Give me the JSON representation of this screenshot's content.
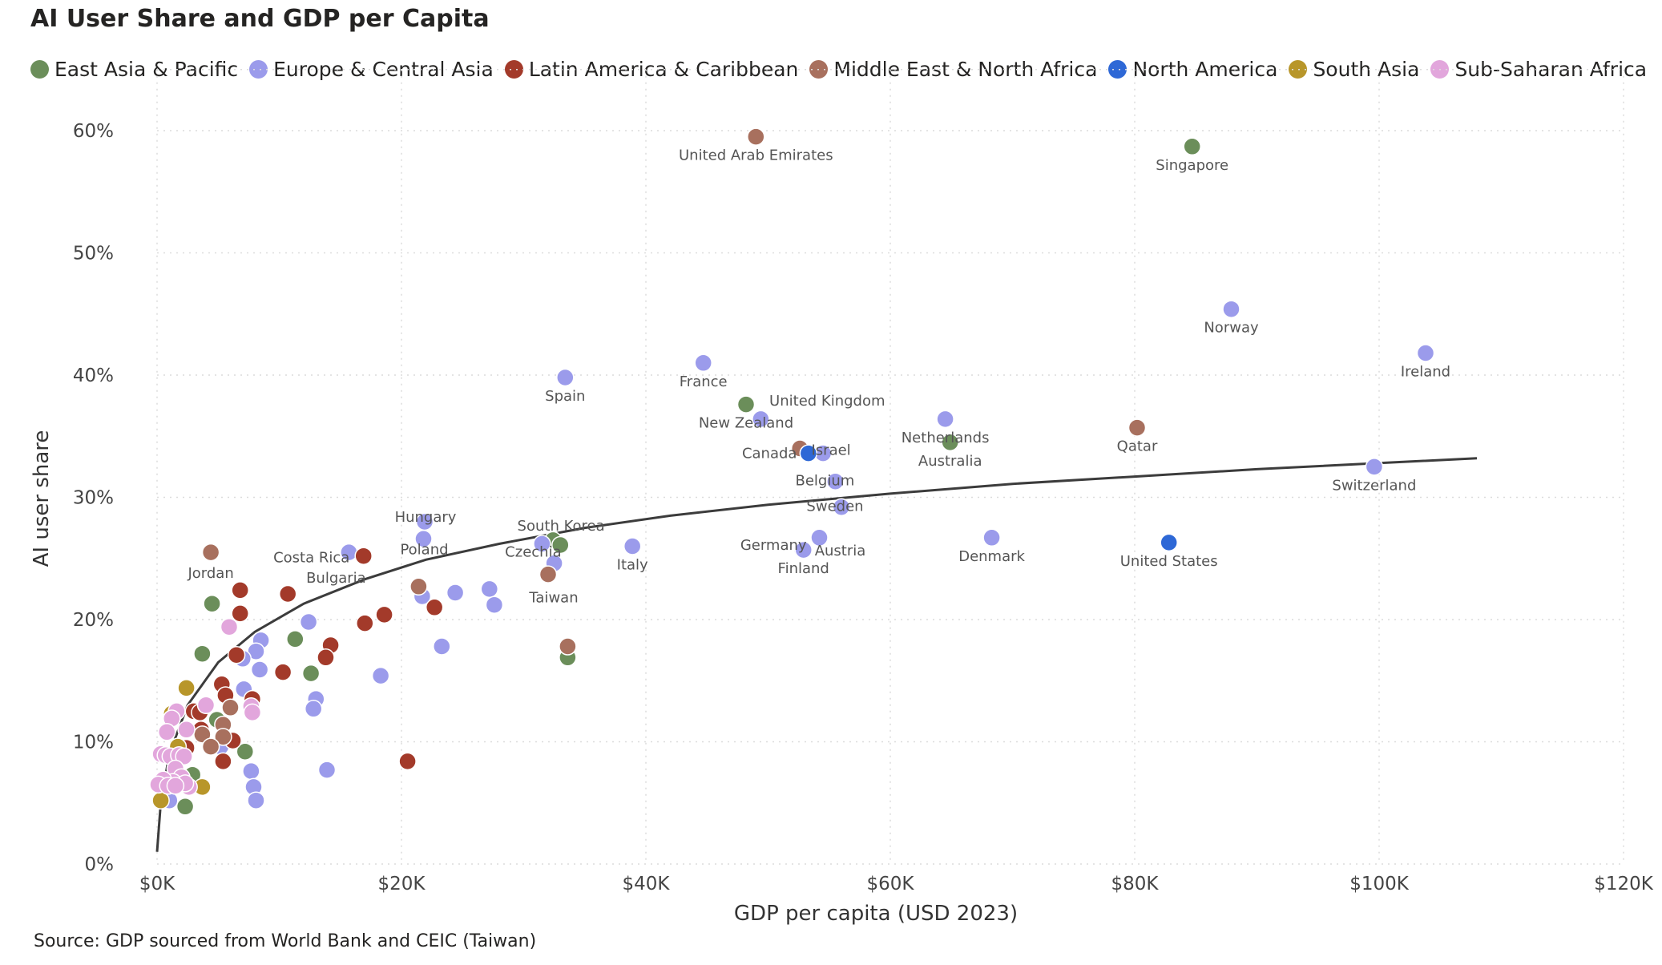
{
  "chart_data": {
    "type": "scatter",
    "title": "AI User Share and GDP per Capita",
    "xlabel": "GDP per capita (USD 2023)",
    "ylabel": "AI user share",
    "xlim": [
      0,
      120000
    ],
    "ylim": [
      0,
      65
    ],
    "xticks": [
      0,
      20000,
      40000,
      60000,
      80000,
      100000,
      120000
    ],
    "xtick_labels": [
      "$0K",
      "$20K",
      "$40K",
      "$60K",
      "$80K",
      "$100K",
      "$120K"
    ],
    "yticks": [
      0,
      10,
      20,
      30,
      40,
      50,
      60
    ],
    "ytick_labels": [
      "0%",
      "10%",
      "20%",
      "30%",
      "40%",
      "50%",
      "60%"
    ],
    "grid": true,
    "legend_position": "top",
    "source_note": "Source: GDP sourced from World Bank and CEIC (Taiwan)",
    "regions": [
      {
        "name": "East Asia & Pacific",
        "color": "#6B8E5A"
      },
      {
        "name": "Europe & Central Asia",
        "color": "#9B9BEB"
      },
      {
        "name": "Latin America & Caribbean",
        "color": "#A33A2A"
      },
      {
        "name": "Middle East & North Africa",
        "color": "#A8705E"
      },
      {
        "name": "North America",
        "color": "#2E68D6"
      },
      {
        "name": "South Asia",
        "color": "#B8962A"
      },
      {
        "name": "Sub-Saharan Africa",
        "color": "#E2A6DC"
      }
    ],
    "trendline": {
      "type": "logarithmic",
      "points": [
        [
          0,
          1
        ],
        [
          300,
          5
        ],
        [
          1000,
          9
        ],
        [
          2500,
          13
        ],
        [
          5000,
          16.5
        ],
        [
          8000,
          19
        ],
        [
          12000,
          21.3
        ],
        [
          17000,
          23.3
        ],
        [
          22000,
          24.9
        ],
        [
          28000,
          26.2
        ],
        [
          35000,
          27.5
        ],
        [
          42000,
          28.5
        ],
        [
          50000,
          29.4
        ],
        [
          60000,
          30.3
        ],
        [
          70000,
          31.1
        ],
        [
          80000,
          31.7
        ],
        [
          90000,
          32.3
        ],
        [
          100000,
          32.8
        ],
        [
          108000,
          33.2
        ]
      ]
    },
    "series": [
      {
        "region": "East Asia & Pacific",
        "points": [
          {
            "x": 84700,
            "y": 58.7,
            "label": "Singapore"
          },
          {
            "x": 48200,
            "y": 37.6,
            "label": "New Zealand"
          },
          {
            "x": 64900,
            "y": 34.5,
            "label": "Australia"
          },
          {
            "x": 32400,
            "y": 26.5,
            "label": "South Korea"
          },
          {
            "x": 33000,
            "y": 26.1,
            "label": ""
          },
          {
            "x": 33600,
            "y": 16.9,
            "label": ""
          },
          {
            "x": 4500,
            "y": 21.3,
            "label": ""
          },
          {
            "x": 3700,
            "y": 17.2,
            "label": ""
          },
          {
            "x": 11300,
            "y": 18.4,
            "label": ""
          },
          {
            "x": 12600,
            "y": 15.6,
            "label": ""
          },
          {
            "x": 7200,
            "y": 9.2,
            "label": ""
          },
          {
            "x": 4900,
            "y": 11.8,
            "label": ""
          },
          {
            "x": 2900,
            "y": 7.3,
            "label": ""
          },
          {
            "x": 2300,
            "y": 4.7,
            "label": ""
          },
          {
            "x": 1400,
            "y": 6.6,
            "label": ""
          }
        ]
      },
      {
        "region": "Europe & Central Asia",
        "points": [
          {
            "x": 103800,
            "y": 41.8,
            "label": "Ireland"
          },
          {
            "x": 87900,
            "y": 45.4,
            "label": "Norway"
          },
          {
            "x": 99600,
            "y": 32.5,
            "label": "Switzerland"
          },
          {
            "x": 44700,
            "y": 41.0,
            "label": "France"
          },
          {
            "x": 33400,
            "y": 39.8,
            "label": "Spain"
          },
          {
            "x": 49400,
            "y": 36.4,
            "label": "United Kingdom"
          },
          {
            "x": 64500,
            "y": 36.4,
            "label": "Netherlands"
          },
          {
            "x": 54500,
            "y": 33.6,
            "label": "Israel"
          },
          {
            "x": 55500,
            "y": 31.3,
            "label": "Belgium"
          },
          {
            "x": 56000,
            "y": 29.2,
            "label": "Sweden"
          },
          {
            "x": 54200,
            "y": 26.7,
            "label": "Austria"
          },
          {
            "x": 52800,
            "y": 25.7,
            "label": "Germany"
          },
          {
            "x": 52900,
            "y": 25.7,
            "label": "Finland"
          },
          {
            "x": 68300,
            "y": 26.7,
            "label": "Denmark"
          },
          {
            "x": 38900,
            "y": 26.0,
            "label": "Italy"
          },
          {
            "x": 31500,
            "y": 26.2,
            "label": "Czechia"
          },
          {
            "x": 32500,
            "y": 24.6,
            "label": ""
          },
          {
            "x": 21900,
            "y": 28.0,
            "label": "Hungary"
          },
          {
            "x": 21800,
            "y": 26.6,
            "label": "Poland"
          },
          {
            "x": 21700,
            "y": 21.9,
            "label": ""
          },
          {
            "x": 15700,
            "y": 25.5,
            "label": "Bulgaria"
          },
          {
            "x": 24400,
            "y": 22.2,
            "label": ""
          },
          {
            "x": 27200,
            "y": 22.5,
            "label": ""
          },
          {
            "x": 27600,
            "y": 21.2,
            "label": ""
          },
          {
            "x": 23300,
            "y": 17.8,
            "label": ""
          },
          {
            "x": 18300,
            "y": 15.4,
            "label": ""
          },
          {
            "x": 12400,
            "y": 19.8,
            "label": ""
          },
          {
            "x": 13000,
            "y": 13.5,
            "label": ""
          },
          {
            "x": 12800,
            "y": 12.7,
            "label": ""
          },
          {
            "x": 13900,
            "y": 7.7,
            "label": ""
          },
          {
            "x": 8500,
            "y": 18.3,
            "label": ""
          },
          {
            "x": 8100,
            "y": 17.4,
            "label": ""
          },
          {
            "x": 8400,
            "y": 15.9,
            "label": ""
          },
          {
            "x": 7000,
            "y": 16.8,
            "label": ""
          },
          {
            "x": 7100,
            "y": 14.3,
            "label": ""
          },
          {
            "x": 7700,
            "y": 7.6,
            "label": ""
          },
          {
            "x": 7900,
            "y": 6.3,
            "label": ""
          },
          {
            "x": 8100,
            "y": 5.2,
            "label": ""
          },
          {
            "x": 1000,
            "y": 5.2,
            "label": ""
          },
          {
            "x": 5200,
            "y": 9.6,
            "label": ""
          }
        ]
      },
      {
        "region": "Latin America & Caribbean",
        "points": [
          {
            "x": 16900,
            "y": 25.2,
            "label": "Costa Rica"
          },
          {
            "x": 18600,
            "y": 20.4,
            "label": ""
          },
          {
            "x": 17000,
            "y": 19.7,
            "label": ""
          },
          {
            "x": 22700,
            "y": 21.0,
            "label": ""
          },
          {
            "x": 20500,
            "y": 8.4,
            "label": ""
          },
          {
            "x": 14200,
            "y": 17.9,
            "label": ""
          },
          {
            "x": 13800,
            "y": 16.9,
            "label": ""
          },
          {
            "x": 10700,
            "y": 22.1,
            "label": ""
          },
          {
            "x": 10300,
            "y": 15.7,
            "label": ""
          },
          {
            "x": 6800,
            "y": 22.4,
            "label": ""
          },
          {
            "x": 6800,
            "y": 20.5,
            "label": ""
          },
          {
            "x": 6500,
            "y": 17.1,
            "label": ""
          },
          {
            "x": 5300,
            "y": 14.7,
            "label": ""
          },
          {
            "x": 5600,
            "y": 13.8,
            "label": ""
          },
          {
            "x": 7800,
            "y": 13.5,
            "label": ""
          },
          {
            "x": 3000,
            "y": 12.5,
            "label": ""
          },
          {
            "x": 3500,
            "y": 12.4,
            "label": ""
          },
          {
            "x": 3600,
            "y": 11.0,
            "label": ""
          },
          {
            "x": 6200,
            "y": 10.1,
            "label": ""
          },
          {
            "x": 5400,
            "y": 8.4,
            "label": ""
          },
          {
            "x": 2400,
            "y": 9.5,
            "label": ""
          }
        ]
      },
      {
        "region": "Middle East & North Africa",
        "points": [
          {
            "x": 49000,
            "y": 59.5,
            "label": "United Arab Emirates"
          },
          {
            "x": 80200,
            "y": 35.7,
            "label": "Qatar"
          },
          {
            "x": 52600,
            "y": 34.0,
            "label": "Canada"
          },
          {
            "x": 32000,
            "y": 23.7,
            "label": "Taiwan"
          },
          {
            "x": 33600,
            "y": 17.8,
            "label": ""
          },
          {
            "x": 21400,
            "y": 22.7,
            "label": ""
          },
          {
            "x": 4400,
            "y": 25.5,
            "label": "Jordan"
          },
          {
            "x": 6000,
            "y": 12.8,
            "label": ""
          },
          {
            "x": 5400,
            "y": 11.4,
            "label": ""
          },
          {
            "x": 5400,
            "y": 10.4,
            "label": ""
          },
          {
            "x": 3700,
            "y": 10.6,
            "label": ""
          },
          {
            "x": 4400,
            "y": 9.6,
            "label": ""
          }
        ]
      },
      {
        "region": "North America",
        "points": [
          {
            "x": 53300,
            "y": 33.6,
            "label": ""
          },
          {
            "x": 82800,
            "y": 26.3,
            "label": "United States"
          }
        ]
      },
      {
        "region": "South Asia",
        "points": [
          {
            "x": 2400,
            "y": 14.4,
            "label": ""
          },
          {
            "x": 3700,
            "y": 6.3,
            "label": ""
          },
          {
            "x": 300,
            "y": 5.2,
            "label": ""
          },
          {
            "x": 1200,
            "y": 12.3,
            "label": ""
          },
          {
            "x": 1700,
            "y": 9.6,
            "label": ""
          }
        ]
      },
      {
        "region": "Sub-Saharan Africa",
        "points": [
          {
            "x": 5900,
            "y": 19.4,
            "label": ""
          },
          {
            "x": 7700,
            "y": 12.9,
            "label": ""
          },
          {
            "x": 7800,
            "y": 12.4,
            "label": ""
          },
          {
            "x": 4000,
            "y": 13.0,
            "label": ""
          },
          {
            "x": 1600,
            "y": 12.5,
            "label": ""
          },
          {
            "x": 1200,
            "y": 11.9,
            "label": ""
          },
          {
            "x": 2400,
            "y": 11.0,
            "label": ""
          },
          {
            "x": 800,
            "y": 10.8,
            "label": ""
          },
          {
            "x": 300,
            "y": 9.0,
            "label": ""
          },
          {
            "x": 700,
            "y": 8.9,
            "label": ""
          },
          {
            "x": 1100,
            "y": 8.8,
            "label": ""
          },
          {
            "x": 1800,
            "y": 8.9,
            "label": ""
          },
          {
            "x": 2200,
            "y": 8.8,
            "label": ""
          },
          {
            "x": 1500,
            "y": 7.8,
            "label": ""
          },
          {
            "x": 2000,
            "y": 7.1,
            "label": ""
          },
          {
            "x": 1300,
            "y": 6.7,
            "label": ""
          },
          {
            "x": 500,
            "y": 6.9,
            "label": ""
          },
          {
            "x": 100,
            "y": 6.5,
            "label": ""
          },
          {
            "x": 900,
            "y": 6.4,
            "label": ""
          },
          {
            "x": 2600,
            "y": 6.3,
            "label": ""
          },
          {
            "x": 2300,
            "y": 6.6,
            "label": ""
          },
          {
            "x": 1500,
            "y": 6.4,
            "label": ""
          }
        ]
      }
    ]
  }
}
